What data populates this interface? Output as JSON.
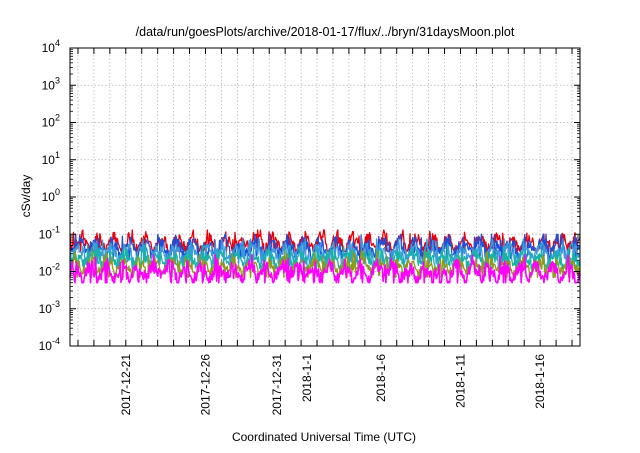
{
  "chart_data": {
    "type": "line",
    "title": "/data/run/goesPlots/archive/2018-01-17/flux/../bryn/31daysMoon.plot",
    "xlabel": "Coordinated Universal Time (UTC)",
    "ylabel": "cSv/day",
    "yscale": "log",
    "ylim": [
      0.0001,
      10000
    ],
    "xlim": [
      "2017-12-17T12:00",
      "2018-01-18T12:00"
    ],
    "grid": true,
    "legend": "none",
    "y_ticks": [
      {
        "base": "10",
        "exp": "4"
      },
      {
        "base": "10",
        "exp": "3"
      },
      {
        "base": "10",
        "exp": "2"
      },
      {
        "base": "10",
        "exp": "1"
      },
      {
        "base": "10",
        "exp": "0"
      },
      {
        "base": "10",
        "exp": "-1"
      },
      {
        "base": "10",
        "exp": "-2"
      },
      {
        "base": "10",
        "exp": "-3"
      },
      {
        "base": "10",
        "exp": "-4"
      }
    ],
    "x_ticks": [
      {
        "date": "2017-12-21",
        "label": "2017-12-21"
      },
      {
        "date": "2017-12-26",
        "label": "2017-12-26"
      },
      {
        "date": "2017-12-31",
        "label": "2017-12-31"
      },
      {
        "date": "2018-01-01",
        "label": "2018-1-1"
      },
      {
        "date": "2018-01-06",
        "label": "2018-1-6"
      },
      {
        "date": "2018-01-11",
        "label": "2018-1-11"
      },
      {
        "date": "2018-01-16",
        "label": "2018-1-16"
      }
    ],
    "series": [
      {
        "color": "#e8000b",
        "base": 0.06,
        "amp": 0.3,
        "min": 0.035,
        "max": 0.13
      },
      {
        "color": "#1f4fd8",
        "base": 0.045,
        "amp": 0.32,
        "min": 0.022,
        "max": 0.1
      },
      {
        "color": "#3a9bdc",
        "base": 0.033,
        "amp": 0.3,
        "min": 0.016,
        "max": 0.075
      },
      {
        "color": "#17b3a6",
        "base": 0.022,
        "amp": 0.28,
        "min": 0.012,
        "max": 0.055
      },
      {
        "color": "#8f9a1a",
        "base": 0.014,
        "amp": 0.26,
        "min": 0.007,
        "max": 0.035
      },
      {
        "color": "#ff00ff",
        "base": 0.01,
        "amp": 0.34,
        "min": 0.005,
        "max": 0.028
      }
    ]
  }
}
